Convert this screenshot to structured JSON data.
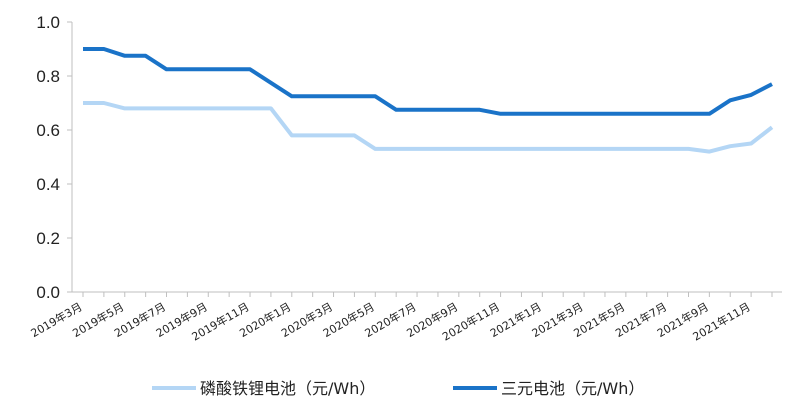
{
  "chart_data": {
    "type": "line",
    "title": "",
    "xlabel": "",
    "ylabel": "",
    "ylim": [
      0,
      1.0
    ],
    "yticks": [
      "0.0",
      "0.2",
      "0.4",
      "0.6",
      "0.8",
      "1.0"
    ],
    "grid": false,
    "legend_position": "bottom",
    "x": [
      "2019年3月",
      "2019年4月",
      "2019年5月",
      "2019年6月",
      "2019年7月",
      "2019年8月",
      "2019年9月",
      "2019年10月",
      "2019年11月",
      "2019年12月",
      "2020年1月",
      "2020年2月",
      "2020年3月",
      "2020年4月",
      "2020年5月",
      "2020年6月",
      "2020年7月",
      "2020年8月",
      "2020年9月",
      "2020年10月",
      "2020年11月",
      "2020年12月",
      "2021年1月",
      "2021年2月",
      "2021年3月",
      "2021年4月",
      "2021年5月",
      "2021年6月",
      "2021年7月",
      "2021年8月",
      "2021年9月",
      "2021年10月",
      "2021年11月",
      "2021年12月"
    ],
    "x_tick_labels": [
      "2019年3月",
      "2019年5月",
      "2019年7月",
      "2019年9月",
      "2019年11月",
      "2020年1月",
      "2020年3月",
      "2020年5月",
      "2020年7月",
      "2020年9月",
      "2020年11月",
      "2021年1月",
      "2021年3月",
      "2021年5月",
      "2021年7月",
      "2021年9月",
      "2021年11月"
    ],
    "series": [
      {
        "name": "磷酸铁锂电池（元/Wh）",
        "color": "#b4d6f5",
        "values": [
          0.7,
          0.7,
          0.68,
          0.68,
          0.68,
          0.68,
          0.68,
          0.68,
          0.68,
          0.68,
          0.58,
          0.58,
          0.58,
          0.58,
          0.53,
          0.53,
          0.53,
          0.53,
          0.53,
          0.53,
          0.53,
          0.53,
          0.53,
          0.53,
          0.53,
          0.53,
          0.53,
          0.53,
          0.53,
          0.53,
          0.52,
          0.54,
          0.55,
          0.61
        ]
      },
      {
        "name": "三元电池（元/Wh）",
        "color": "#1a73c8",
        "values": [
          0.9,
          0.9,
          0.875,
          0.875,
          0.825,
          0.825,
          0.825,
          0.825,
          0.825,
          0.775,
          0.725,
          0.725,
          0.725,
          0.725,
          0.725,
          0.675,
          0.675,
          0.675,
          0.675,
          0.675,
          0.66,
          0.66,
          0.66,
          0.66,
          0.66,
          0.66,
          0.66,
          0.66,
          0.66,
          0.66,
          0.66,
          0.71,
          0.73,
          0.77
        ]
      }
    ]
  }
}
